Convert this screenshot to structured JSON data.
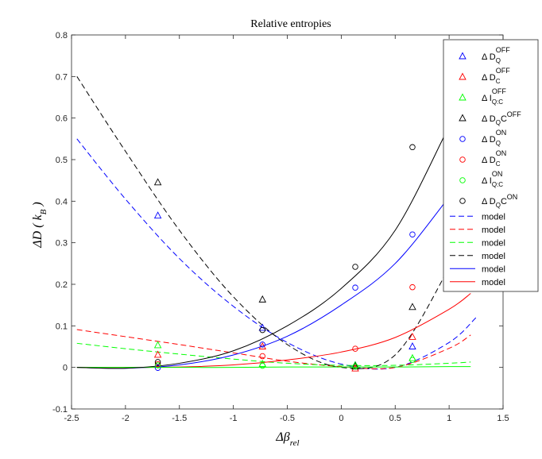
{
  "chart_data": {
    "type": "scatter",
    "title": "Relative entropies",
    "xlabel": "Δβ_rel",
    "ylabel": "ΔD ( k_B )",
    "xlim": [
      -2.5,
      1.5
    ],
    "ylim": [
      -0.1,
      0.8
    ],
    "xticks": [
      -2.5,
      -2,
      -1.5,
      -1,
      -0.5,
      0,
      0.5,
      1,
      1.5
    ],
    "xtick_labels": [
      "-2.5",
      "-2",
      "-1.5",
      "-1",
      "-0.5",
      "0",
      "0.5",
      "1",
      "1.5"
    ],
    "yticks": [
      -0.1,
      0,
      0.1,
      0.2,
      0.3,
      0.4,
      0.5,
      0.6,
      0.7,
      0.8
    ],
    "ytick_labels": [
      "-0.1",
      "0",
      "0.1",
      "0.2",
      "0.3",
      "0.4",
      "0.5",
      "0.6",
      "0.7",
      "0.8"
    ],
    "grid": false,
    "legend_position": "top-right",
    "colors": {
      "blue": "#0000ff",
      "red": "#ff0000",
      "green": "#00ff00",
      "black": "#000000"
    },
    "series": [
      {
        "name": "Δ D_Q^OFF",
        "marker": "triangle",
        "color": "#0000ff",
        "x": [
          -1.7,
          -0.73,
          0.13,
          0.66
        ],
        "y": [
          0.365,
          0.095,
          0.005,
          0.05
        ]
      },
      {
        "name": "Δ D_C^OFF",
        "marker": "triangle",
        "color": "#ff0000",
        "x": [
          -1.7,
          -0.73,
          0.13,
          0.66
        ],
        "y": [
          0.03,
          0.05,
          -0.003,
          0.073
        ]
      },
      {
        "name": "Δ I_Q:C^OFF",
        "marker": "triangle",
        "color": "#00ff00",
        "x": [
          -1.7,
          -0.73,
          0.13,
          0.66
        ],
        "y": [
          0.053,
          0.008,
          0.005,
          0.022
        ]
      },
      {
        "name": "Δ D_QC^OFF",
        "marker": "triangle",
        "color": "#000000",
        "x": [
          -1.7,
          -0.73,
          0.13,
          0.66
        ],
        "y": [
          0.445,
          0.163,
          0.002,
          0.145
        ]
      },
      {
        "name": "Δ D_Q^ON",
        "marker": "circle",
        "color": "#0000ff",
        "x": [
          -1.7,
          -0.73,
          0.13,
          0.66
        ],
        "y": [
          -0.001,
          0.055,
          0.192,
          0.32
        ]
      },
      {
        "name": "Δ D_C^ON",
        "marker": "circle",
        "color": "#ff0000",
        "x": [
          -1.7,
          -0.73,
          0.13,
          0.66
        ],
        "y": [
          0.008,
          0.027,
          0.045,
          0.193
        ]
      },
      {
        "name": "Δ I_Q:C^ON",
        "marker": "circle",
        "color": "#00ff00",
        "x": [
          -1.7,
          -0.73,
          0.13,
          0.66
        ],
        "y": [
          0.005,
          0.004,
          0.002,
          0.018
        ]
      },
      {
        "name": "Δ D_QC^ON",
        "marker": "circle",
        "color": "#000000",
        "x": [
          -1.7,
          -0.73,
          0.13,
          0.66
        ],
        "y": [
          0.013,
          0.09,
          0.242,
          0.53
        ]
      }
    ],
    "models": [
      {
        "name": "model",
        "style": "dashed",
        "color": "#0000ff",
        "x": [
          -2.45,
          -2.0,
          -1.5,
          -1.0,
          -0.5,
          0.0,
          0.5,
          1.0,
          1.25
        ],
        "y": [
          0.55,
          0.405,
          0.262,
          0.147,
          0.06,
          0.008,
          0.0,
          0.06,
          0.12
        ]
      },
      {
        "name": "model",
        "style": "dashed",
        "color": "#ff0000",
        "x": [
          -2.45,
          -2.0,
          -1.5,
          -1.0,
          -0.5,
          0.0,
          0.5,
          1.0,
          1.2
        ],
        "y": [
          0.091,
          0.074,
          0.055,
          0.035,
          0.015,
          0.002,
          0.0,
          0.046,
          0.078
        ]
      },
      {
        "name": "model",
        "style": "dashed",
        "color": "#00ff00",
        "x": [
          -2.45,
          -2.0,
          -1.5,
          -1.0,
          -0.5,
          0.0,
          0.5,
          1.0,
          1.2
        ],
        "y": [
          0.058,
          0.045,
          0.032,
          0.02,
          0.01,
          0.005,
          0.005,
          0.01,
          0.013
        ]
      },
      {
        "name": "model",
        "style": "dashed",
        "color": "#000000",
        "x": [
          -2.45,
          -2.0,
          -1.5,
          -1.0,
          -0.5,
          0.0,
          0.5,
          1.0,
          1.2
        ],
        "y": [
          0.7,
          0.52,
          0.33,
          0.17,
          0.055,
          0.0,
          0.03,
          0.24,
          0.35
        ]
      },
      {
        "name": "model",
        "style": "solid",
        "color": "#0000ff",
        "x": [
          -2.45,
          -2.0,
          -1.5,
          -1.0,
          -0.5,
          0.0,
          0.5,
          1.0,
          1.2
        ],
        "y": [
          0.0,
          -0.002,
          0.006,
          0.03,
          0.075,
          0.15,
          0.25,
          0.41,
          0.48
        ]
      },
      {
        "name": "model",
        "style": "solid",
        "color": "#ff0000",
        "x": [
          -2.45,
          -2.0,
          -1.5,
          -1.0,
          -0.5,
          0.0,
          0.5,
          1.0,
          1.2
        ],
        "y": [
          0.0,
          0.0,
          0.001,
          0.006,
          0.018,
          0.037,
          0.072,
          0.14,
          0.178
        ]
      },
      {
        "name": "",
        "style": "solid",
        "color": "#00ff00",
        "x": [
          -2.45,
          -2.0,
          -1.5,
          -1.0,
          -0.5,
          0.0,
          0.5,
          1.0,
          1.2
        ],
        "y": [
          0.0,
          0.0,
          0.0,
          0.0,
          0.001,
          0.001,
          0.001,
          0.002,
          0.002
        ]
      },
      {
        "name": "",
        "style": "solid",
        "color": "#000000",
        "x": [
          -2.45,
          -2.0,
          -1.5,
          -1.0,
          -0.5,
          0.0,
          0.5,
          1.0,
          1.2
        ],
        "y": [
          0.0,
          -0.002,
          0.01,
          0.04,
          0.1,
          0.19,
          0.33,
          0.58,
          0.68
        ]
      }
    ],
    "legend": [
      {
        "label": "Δ D",
        "sub": "Q",
        "sup": "OFF",
        "marker": "triangle",
        "color": "#0000ff"
      },
      {
        "label": "Δ D",
        "sub": "C",
        "sup": "OFF",
        "marker": "triangle",
        "color": "#ff0000"
      },
      {
        "label": "Δ I",
        "sub": "Q:C",
        "sup": "OFF",
        "marker": "triangle",
        "color": "#00ff00"
      },
      {
        "label": "Δ D",
        "sub": "Q",
        "mid": "C",
        "sup": "OFF",
        "marker": "triangle",
        "color": "#000000"
      },
      {
        "label": "Δ D",
        "sub": "Q",
        "sup": "ON",
        "marker": "circle",
        "color": "#0000ff"
      },
      {
        "label": "Δ D",
        "sub": "C",
        "sup": "ON",
        "marker": "circle",
        "color": "#ff0000"
      },
      {
        "label": "Δ I",
        "sub": "Q:C",
        "sup": "ON",
        "marker": "circle",
        "color": "#00ff00"
      },
      {
        "label": "Δ D",
        "sub": "Q",
        "mid": "C",
        "sup": "ON",
        "marker": "circle",
        "color": "#000000"
      },
      {
        "label": "model",
        "marker": "dashed",
        "color": "#0000ff"
      },
      {
        "label": "model",
        "marker": "dashed",
        "color": "#ff0000"
      },
      {
        "label": "model",
        "marker": "dashed",
        "color": "#00ff00"
      },
      {
        "label": "model",
        "marker": "dashed",
        "color": "#000000"
      },
      {
        "label": "model",
        "marker": "solid",
        "color": "#0000ff"
      },
      {
        "label": "model",
        "marker": "solid",
        "color": "#ff0000"
      }
    ]
  }
}
